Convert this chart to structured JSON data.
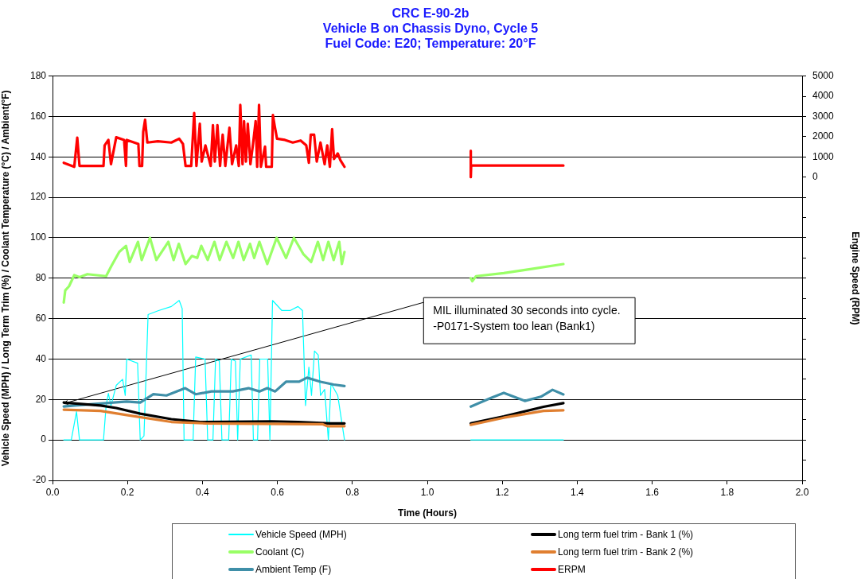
{
  "chart_data": {
    "type": "line",
    "title": "CRC E-90-2b",
    "subtitle": "Vehicle B on Chassis Dyno, Cycle 5\nFuel Code: E20; Temperature: 20°F",
    "xlabel": "Time (Hours)",
    "ylabel": "Vehicle Speed (MPH) / Long Term Trim (%) / Coolant Temperature (°C) / Ambient(°F)",
    "y2label": "Engine Speed (RPM)",
    "xlim": [
      0,
      2
    ],
    "xticks": [
      {
        "value": 0,
        "label": "0.0"
      },
      0.2,
      0.4,
      0.6,
      0.8,
      {
        "value": 1,
        "label": "1.0"
      },
      1.2,
      1.4,
      1.6,
      1.8,
      {
        "value": 2,
        "label": "2.0"
      }
    ],
    "ylim": [
      -20,
      180
    ],
    "yticks": [
      -20,
      0,
      20,
      40,
      60,
      80,
      100,
      120,
      140,
      160,
      180
    ],
    "y2lim": [
      -15000,
      5000
    ],
    "y2ticks": [
      5000,
      4000,
      3000,
      2000,
      1000,
      0,
      {
        "value": -1000,
        "label": null
      },
      {
        "value": -2000,
        "label": null
      },
      {
        "value": -3000,
        "label": null
      },
      {
        "value": -4000,
        "label": null
      },
      {
        "value": -5000,
        "label": null
      },
      {
        "value": -6000,
        "label": null
      },
      {
        "value": -7000,
        "label": null
      },
      {
        "value": -8000,
        "label": null
      },
      {
        "value": -9000,
        "label": null
      },
      {
        "value": -10000,
        "label": null
      },
      {
        "value": -11000,
        "label": null
      },
      {
        "value": -12000,
        "label": null
      },
      {
        "value": -13000,
        "label": null
      },
      {
        "value": -14000,
        "label": null
      },
      {
        "value": -15000,
        "label": null
      }
    ],
    "grid": "y",
    "legend": "bottom",
    "marker": "none",
    "line_style": "solid",
    "annotations": [
      {
        "text": "MIL illuminated 30 seconds into cycle.\n-P0171-System too lean (Bank1)",
        "x": 0.03,
        "y": 18
      }
    ],
    "series": [
      {
        "name": "Vehicle Speed (MPH)",
        "color": "#00ffff",
        "x": [
          0.03,
          0.05,
          0.064,
          0.072,
          0.136,
          0.143,
          0.149,
          0.156,
          0.17,
          0.187,
          0.194,
          0.198,
          0.227,
          0.234,
          0.244,
          0.255,
          0.283,
          0.317,
          0.338,
          0.346,
          0.351,
          0.375,
          0.382,
          0.407,
          0.414,
          0.428,
          0.435,
          0.445,
          0.452,
          0.47,
          0.477,
          0.488,
          0.494,
          0.501,
          0.53,
          0.536,
          0.547,
          0.553,
          0.574,
          0.58,
          0.587,
          0.612,
          0.634,
          0.655,
          0.667,
          0.675,
          0.684,
          0.691,
          0.699,
          0.709,
          0.715,
          0.726,
          0.736,
          0.743,
          0.761,
          0.779,
          0.95,
          1.116,
          1.363
        ],
        "values": [
          0,
          0,
          14,
          0,
          0,
          17,
          23,
          17,
          27,
          30,
          22,
          40,
          38,
          0,
          2,
          62,
          64,
          66,
          69,
          65,
          0,
          0,
          41,
          40,
          0,
          0,
          40,
          39,
          0,
          0,
          40,
          39,
          0,
          40,
          42,
          0,
          0,
          40,
          40,
          0,
          69,
          64,
          64,
          66,
          64,
          17,
          36,
          22,
          44,
          42,
          22,
          25,
          0,
          28,
          22,
          0,
          null,
          0,
          0
        ]
      },
      {
        "name": "Coolant (C)",
        "color": "#99ff66",
        "x": [
          0.03,
          0.034,
          0.044,
          0.058,
          0.072,
          0.093,
          0.143,
          0.157,
          0.178,
          0.196,
          0.206,
          0.228,
          0.238,
          0.26,
          0.277,
          0.309,
          0.323,
          0.337,
          0.355,
          0.372,
          0.386,
          0.397,
          0.414,
          0.432,
          0.446,
          0.464,
          0.482,
          0.496,
          0.51,
          0.527,
          0.538,
          0.552,
          0.573,
          0.598,
          0.623,
          0.644,
          0.669,
          0.69,
          0.708,
          0.722,
          0.736,
          0.75,
          0.765,
          0.772,
          0.779,
          0.95,
          1.116,
          1.12,
          1.13,
          1.204,
          1.275,
          1.363
        ],
        "values": [
          68,
          74,
          76,
          81.5,
          80.5,
          82,
          81,
          86,
          93,
          96,
          88,
          98,
          89,
          100,
          89,
          98,
          89,
          97,
          87,
          91,
          90,
          96,
          89,
          98,
          89,
          98,
          90,
          98,
          89,
          97,
          90,
          98,
          87,
          100,
          90,
          100,
          92,
          88,
          98,
          89,
          98,
          89,
          98,
          87,
          93,
          null,
          80,
          78.5,
          81,
          82.5,
          84.5,
          87
        ]
      },
      {
        "name": "Ambient Temp (F)",
        "color": "#3f8fa8",
        "x": [
          0.03,
          0.058,
          0.128,
          0.163,
          0.198,
          0.234,
          0.269,
          0.304,
          0.354,
          0.382,
          0.424,
          0.481,
          0.523,
          0.552,
          0.573,
          0.594,
          0.623,
          0.658,
          0.679,
          0.715,
          0.75,
          0.779,
          0.95,
          1.116,
          1.169,
          1.204,
          1.26,
          1.303,
          1.334,
          1.363
        ],
        "values": [
          16.5,
          17,
          18,
          18.5,
          19,
          18.5,
          22.6,
          22,
          25.6,
          22.6,
          24,
          24,
          25.6,
          24,
          25.6,
          24,
          28.8,
          28.8,
          30.8,
          28.8,
          27.4,
          26.7,
          null,
          16.5,
          20.7,
          23.3,
          19.3,
          21.4,
          24.8,
          22.5
        ]
      },
      {
        "name": "Long term fuel trim - Bank 1 (%)",
        "color": "#000000",
        "x": [
          0.03,
          0.128,
          0.17,
          0.234,
          0.317,
          0.394,
          0.585,
          0.656,
          0.741,
          0.779,
          0.95,
          1.116,
          1.204,
          1.31,
          1.363
        ],
        "values": [
          18.5,
          17,
          15.8,
          13,
          10.3,
          8.9,
          9.2,
          8.9,
          8.2,
          8.2,
          null,
          8.2,
          11.6,
          16.4,
          18.2
        ]
      },
      {
        "name": "Long term fuel trim - Bank 2 (%)",
        "color": "#e07f30",
        "x": [
          0.03,
          0.128,
          0.198,
          0.317,
          0.409,
          0.72,
          0.733,
          0.779,
          0.95,
          1.116,
          1.204,
          1.31,
          1.363
        ],
        "values": [
          15,
          14.4,
          12.3,
          8.9,
          8.2,
          7.8,
          6.8,
          6.8,
          null,
          7.5,
          11,
          14.4,
          14.7
        ]
      },
      {
        "name": "ERPM",
        "color": "#ff0000",
        "axis": "y2",
        "x": [
          0.03,
          0.058,
          0.066,
          0.072,
          0.136,
          0.139,
          0.149,
          0.156,
          0.17,
          0.191,
          0.196,
          0.198,
          0.229,
          0.232,
          0.239,
          0.242,
          0.247,
          0.253,
          0.281,
          0.317,
          0.338,
          0.348,
          0.355,
          0.37,
          0.378,
          0.384,
          0.393,
          0.398,
          0.408,
          0.422,
          0.428,
          0.433,
          0.44,
          0.447,
          0.454,
          0.461,
          0.472,
          0.479,
          0.49,
          0.497,
          0.501,
          0.507,
          0.511,
          0.516,
          0.521,
          0.528,
          0.535,
          0.542,
          0.546,
          0.551,
          0.556,
          0.567,
          0.57,
          0.585,
          0.588,
          0.593,
          0.599,
          0.62,
          0.641,
          0.662,
          0.677,
          0.684,
          0.689,
          0.698,
          0.705,
          0.715,
          0.726,
          0.733,
          0.74,
          0.746,
          0.751,
          0.761,
          0.768,
          0.779,
          0.95,
          1.116,
          1.116,
          1.117,
          1.363
        ],
        "values": [
          710,
          510,
          1950,
          550,
          550,
          1570,
          1840,
          640,
          1970,
          1840,
          550,
          1840,
          1640,
          550,
          550,
          2240,
          2840,
          1710,
          1770,
          1710,
          1900,
          1640,
          550,
          550,
          3170,
          550,
          2640,
          770,
          1570,
          550,
          2570,
          770,
          2570,
          550,
          2100,
          550,
          2440,
          640,
          1570,
          550,
          3570,
          640,
          2770,
          770,
          2640,
          640,
          1640,
          2770,
          510,
          3570,
          510,
          1510,
          510,
          510,
          3070,
          2510,
          1900,
          1840,
          1710,
          1810,
          1570,
          710,
          2100,
          2100,
          770,
          1710,
          640,
          1570,
          510,
          2370,
          900,
          1170,
          840,
          510,
          null,
          1300,
          0,
          570,
          570
        ]
      }
    ]
  }
}
